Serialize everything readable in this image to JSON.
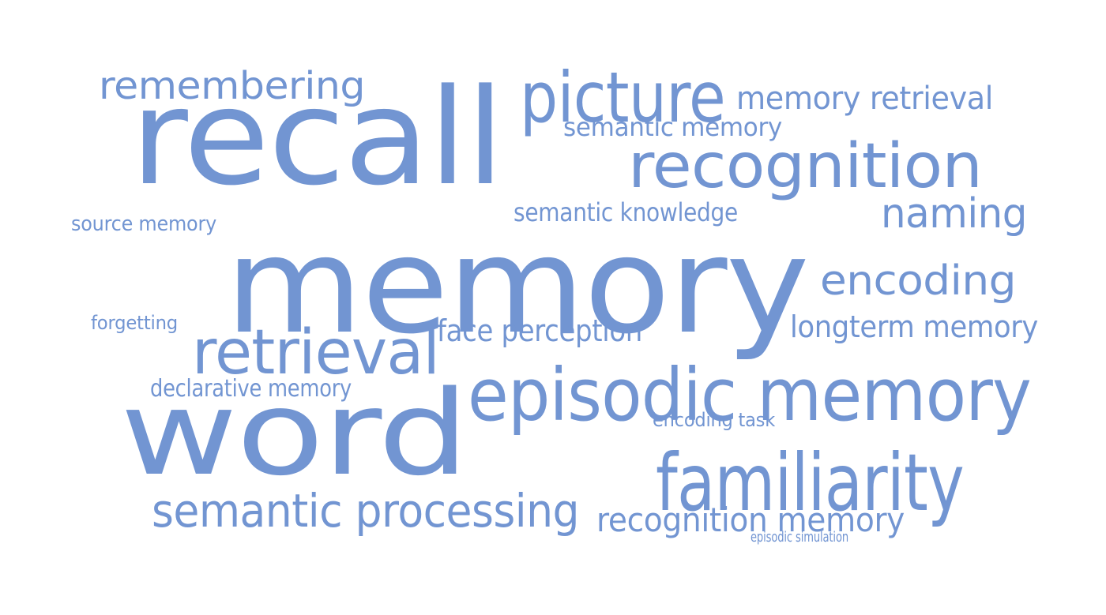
{
  "word_color": "#7295d2",
  "words": [
    {
      "id": "recall",
      "text": "recall"
    },
    {
      "id": "memory",
      "text": "memory"
    },
    {
      "id": "word",
      "text": "word"
    },
    {
      "id": "recognition",
      "text": "recognition"
    },
    {
      "id": "picture",
      "text": "picture"
    },
    {
      "id": "episodic-memory",
      "text": "episodic memory"
    },
    {
      "id": "familiarity",
      "text": "familiarity"
    },
    {
      "id": "retrieval",
      "text": "retrieval"
    },
    {
      "id": "remembering",
      "text": "remembering"
    },
    {
      "id": "semantic-processing",
      "text": "semantic processing"
    },
    {
      "id": "encoding",
      "text": "encoding"
    },
    {
      "id": "naming",
      "text": "naming"
    },
    {
      "id": "memory-retrieval",
      "text": "memory retrieval"
    },
    {
      "id": "recognition-memory",
      "text": "recognition memory"
    },
    {
      "id": "face-perception",
      "text": "face perception"
    },
    {
      "id": "longterm-memory",
      "text": "longterm memory"
    },
    {
      "id": "semantic-memory",
      "text": "semantic memory"
    },
    {
      "id": "semantic-knowledge",
      "text": "semantic knowledge"
    },
    {
      "id": "declarative-memory",
      "text": "declarative memory"
    },
    {
      "id": "source-memory",
      "text": "source memory"
    },
    {
      "id": "forgetting",
      "text": "forgetting"
    },
    {
      "id": "encoding-task",
      "text": "encoding task"
    },
    {
      "id": "episodic-simulation",
      "text": "episodic simulation"
    }
  ]
}
